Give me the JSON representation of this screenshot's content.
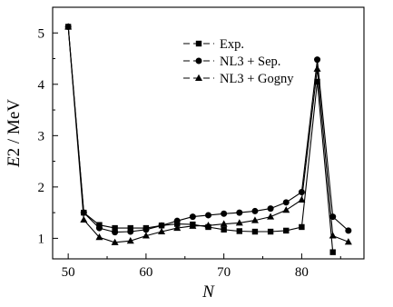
{
  "chart_data": {
    "type": "line",
    "xlabel": "N",
    "ylabel_var": "E",
    "ylabel_rest": "2 / MeV",
    "xlim": [
      48,
      88
    ],
    "ylim": [
      0.6,
      5.5
    ],
    "xticks": [
      50,
      60,
      70,
      80
    ],
    "yticks": [
      1,
      2,
      3,
      4,
      5
    ],
    "legend_position": "top-right",
    "series": [
      {
        "name": "Exp.",
        "marker": "square",
        "x": [
          50,
          52,
          54,
          56,
          58,
          60,
          62,
          64,
          66,
          68,
          70,
          72,
          74,
          76,
          78,
          80,
          82,
          84
        ],
        "values": [
          5.12,
          1.5,
          1.26,
          1.2,
          1.2,
          1.2,
          1.25,
          1.28,
          1.27,
          1.22,
          1.17,
          1.14,
          1.13,
          1.13,
          1.15,
          1.22,
          4.05,
          0.73
        ]
      },
      {
        "name": "NL3 + Sep.",
        "marker": "circle",
        "x": [
          50,
          52,
          54,
          56,
          58,
          60,
          62,
          64,
          66,
          68,
          70,
          72,
          74,
          76,
          78,
          80,
          82,
          84,
          86
        ],
        "values": [
          5.12,
          1.5,
          1.2,
          1.12,
          1.13,
          1.17,
          1.25,
          1.34,
          1.42,
          1.45,
          1.48,
          1.5,
          1.53,
          1.58,
          1.7,
          1.9,
          4.48,
          1.42,
          1.15
        ]
      },
      {
        "name": "NL3 + Gogny",
        "marker": "triangle",
        "x": [
          50,
          52,
          54,
          56,
          58,
          60,
          62,
          64,
          66,
          68,
          70,
          72,
          74,
          76,
          78,
          80,
          82,
          84,
          86
        ],
        "values": [
          5.12,
          1.36,
          1.02,
          0.92,
          0.95,
          1.05,
          1.13,
          1.2,
          1.24,
          1.25,
          1.28,
          1.3,
          1.35,
          1.42,
          1.55,
          1.75,
          4.3,
          1.05,
          0.93
        ]
      }
    ]
  }
}
